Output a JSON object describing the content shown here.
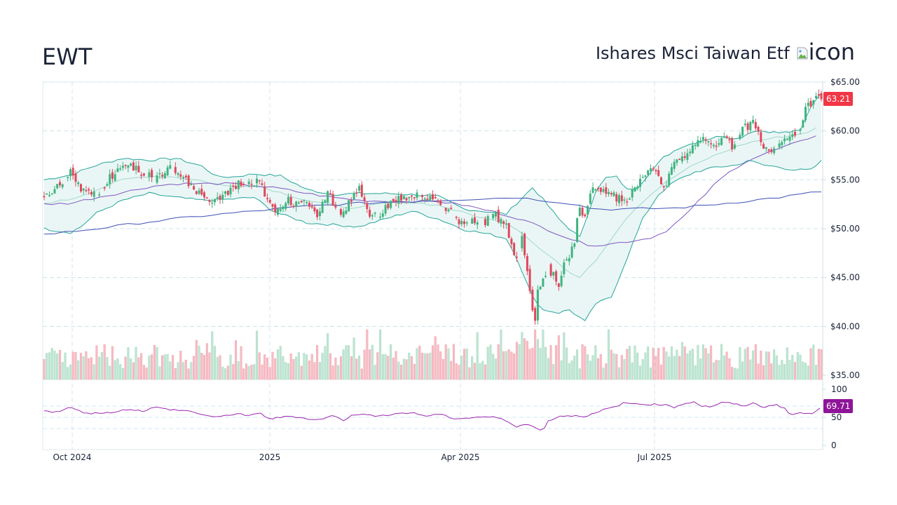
{
  "header": {
    "ticker": "EWT",
    "name": "Ishares Msci Taiwan Etf",
    "icon_alt": "icon"
  },
  "colors": {
    "up": "#26a69a",
    "up_candle": "#3fb37f",
    "down": "#e0475c",
    "bb_band": "#26a69a",
    "bb_fill": "#e6f4f3",
    "bb_mid": "#9fd8cb",
    "ma50": "#7e57c2",
    "ma200": "#3f51b5",
    "rsi": "#9c27b0",
    "price_badge": "#f23645",
    "rsi_badge": "#8e1599",
    "grid": "#cde3ea"
  },
  "badges": {
    "last_price": "63.21",
    "rsi_value": "69.71"
  },
  "chart_data": {
    "type": "candlestick",
    "title": "EWT",
    "subtitle": "Ishares Msci Taiwan Etf",
    "x_ticks": [
      "Oct 2024",
      "2025",
      "Apr 2025",
      "Jul 2025"
    ],
    "y_ticks": [
      "$65.00",
      "$60.00",
      "$55.00",
      "$50.00",
      "$45.00",
      "$40.00",
      "$35.00"
    ],
    "ylim": [
      35,
      65
    ],
    "rsi_ticks": [
      "100",
      "50",
      "0"
    ],
    "rsi_levels": [
      70,
      30
    ],
    "last_close": 63.21,
    "last_rsi": 69.71,
    "indicators": [
      "Bollinger Bands (20, 2)",
      "SMA 50",
      "SMA 200",
      "RSI 14",
      "Volume"
    ],
    "close_path": [
      [
        0,
        53.2
      ],
      [
        6,
        54.5
      ],
      [
        10,
        56.0
      ],
      [
        14,
        54.0
      ],
      [
        20,
        53.3
      ],
      [
        26,
        55.5
      ],
      [
        30,
        56.8
      ],
      [
        36,
        56.0
      ],
      [
        42,
        55.0
      ],
      [
        48,
        56.2
      ],
      [
        52,
        55.2
      ],
      [
        56,
        54.5
      ],
      [
        60,
        53.3
      ],
      [
        64,
        53.0
      ],
      [
        68,
        53.5
      ],
      [
        74,
        54.6
      ],
      [
        78,
        55.0
      ],
      [
        82,
        54.6
      ],
      [
        86,
        52.8
      ],
      [
        88,
        51.8
      ],
      [
        92,
        53.0
      ],
      [
        96,
        52.5
      ],
      [
        100,
        52.8
      ],
      [
        104,
        51.5
      ],
      [
        108,
        53.8
      ],
      [
        112,
        51.5
      ],
      [
        116,
        52.5
      ],
      [
        120,
        54.0
      ],
      [
        124,
        51.0
      ],
      [
        128,
        51.5
      ],
      [
        132,
        52.8
      ],
      [
        136,
        53.0
      ],
      [
        140,
        53.3
      ],
      [
        144,
        53.5
      ],
      [
        148,
        53.0
      ],
      [
        152,
        52.0
      ],
      [
        156,
        51.5
      ],
      [
        160,
        50.2
      ],
      [
        164,
        51.0
      ],
      [
        168,
        50.8
      ],
      [
        172,
        51.3
      ],
      [
        176,
        50.5
      ],
      [
        178,
        48.2
      ],
      [
        180,
        47.0
      ],
      [
        182,
        49.0
      ],
      [
        184,
        45.5
      ],
      [
        186,
        42.0
      ],
      [
        187,
        41.0
      ],
      [
        188,
        43.5
      ],
      [
        190,
        45.2
      ],
      [
        192,
        46.0
      ],
      [
        194,
        45.2
      ],
      [
        196,
        44.0
      ],
      [
        198,
        46.5
      ],
      [
        200,
        47.0
      ],
      [
        202,
        48.8
      ],
      [
        204,
        52.5
      ],
      [
        206,
        51.0
      ],
      [
        208,
        53.8
      ],
      [
        212,
        54.0
      ],
      [
        216,
        53.5
      ],
      [
        220,
        52.8
      ],
      [
        222,
        53.2
      ],
      [
        226,
        54.5
      ],
      [
        230,
        56.0
      ],
      [
        234,
        55.5
      ],
      [
        236,
        54.2
      ],
      [
        240,
        56.5
      ],
      [
        244,
        57.5
      ],
      [
        248,
        58.5
      ],
      [
        252,
        59.3
      ],
      [
        256,
        58.8
      ],
      [
        260,
        59.5
      ],
      [
        262,
        58.5
      ],
      [
        266,
        60.3
      ],
      [
        270,
        60.8
      ],
      [
        272,
        60.0
      ],
      [
        274,
        58.5
      ],
      [
        278,
        57.8
      ],
      [
        282,
        59.0
      ],
      [
        286,
        59.6
      ],
      [
        288,
        60.2
      ],
      [
        290,
        62.3
      ],
      [
        294,
        63.21
      ]
    ],
    "bb_upper": [
      [
        0,
        55.0
      ],
      [
        10,
        55.5
      ],
      [
        20,
        56.5
      ],
      [
        30,
        57.2
      ],
      [
        40,
        57.0
      ],
      [
        50,
        57.2
      ],
      [
        60,
        56.4
      ],
      [
        66,
        55.3
      ],
      [
        72,
        55.3
      ],
      [
        80,
        55.6
      ],
      [
        90,
        55.4
      ],
      [
        100,
        54.0
      ],
      [
        110,
        53.5
      ],
      [
        120,
        53.6
      ],
      [
        130,
        53.6
      ],
      [
        140,
        53.5
      ],
      [
        150,
        53.3
      ],
      [
        160,
        52.0
      ],
      [
        170,
        51.7
      ],
      [
        176,
        51.5
      ],
      [
        180,
        52.6
      ],
      [
        186,
        54.2
      ],
      [
        190,
        53.0
      ],
      [
        196,
        51.0
      ],
      [
        200,
        50.0
      ],
      [
        204,
        49.1
      ],
      [
        210,
        53.8
      ],
      [
        214,
        55.2
      ],
      [
        218,
        55.3
      ],
      [
        222,
        54.0
      ],
      [
        226,
        54.2
      ],
      [
        230,
        55.5
      ],
      [
        236,
        57.3
      ],
      [
        242,
        58.3
      ],
      [
        250,
        59.0
      ],
      [
        258,
        59.5
      ],
      [
        264,
        59.2
      ],
      [
        270,
        60.0
      ],
      [
        274,
        60.0
      ],
      [
        280,
        59.8
      ],
      [
        288,
        60.0
      ],
      [
        292,
        62.5
      ],
      [
        296,
        64.0
      ]
    ],
    "bb_middle": [
      [
        0,
        52.6
      ],
      [
        10,
        53.0
      ],
      [
        20,
        54.0
      ],
      [
        30,
        55.0
      ],
      [
        40,
        55.4
      ],
      [
        50,
        55.3
      ],
      [
        60,
        54.9
      ],
      [
        70,
        54.3
      ],
      [
        80,
        54.5
      ],
      [
        90,
        53.7
      ],
      [
        100,
        52.9
      ],
      [
        110,
        52.4
      ],
      [
        120,
        52.1
      ],
      [
        130,
        52.6
      ],
      [
        140,
        52.7
      ],
      [
        150,
        52.4
      ],
      [
        160,
        51.6
      ],
      [
        170,
        50.9
      ],
      [
        176,
        50.6
      ],
      [
        180,
        50.0
      ],
      [
        186,
        48.7
      ],
      [
        190,
        47.7
      ],
      [
        196,
        46.5
      ],
      [
        200,
        45.3
      ],
      [
        204,
        45.1
      ],
      [
        210,
        46.8
      ],
      [
        216,
        49.0
      ],
      [
        222,
        51.2
      ],
      [
        228,
        52.8
      ],
      [
        236,
        54.6
      ],
      [
        244,
        56.0
      ],
      [
        252,
        57.1
      ],
      [
        260,
        58.0
      ],
      [
        268,
        58.8
      ],
      [
        276,
        59.2
      ],
      [
        284,
        59.5
      ],
      [
        290,
        59.8
      ],
      [
        296,
        60.5
      ]
    ],
    "bb_lower": [
      [
        0,
        50.0
      ],
      [
        10,
        49.6
      ],
      [
        14,
        50.2
      ],
      [
        20,
        51.6
      ],
      [
        30,
        52.9
      ],
      [
        40,
        53.6
      ],
      [
        50,
        53.2
      ],
      [
        60,
        52.9
      ],
      [
        70,
        53.0
      ],
      [
        80,
        53.2
      ],
      [
        86,
        52.0
      ],
      [
        90,
        51.5
      ],
      [
        100,
        50.6
      ],
      [
        110,
        50.4
      ],
      [
        120,
        50.2
      ],
      [
        130,
        51.0
      ],
      [
        140,
        51.8
      ],
      [
        150,
        51.0
      ],
      [
        160,
        49.9
      ],
      [
        170,
        49.4
      ],
      [
        176,
        49.0
      ],
      [
        180,
        47.0
      ],
      [
        186,
        43.0
      ],
      [
        190,
        41.7
      ],
      [
        196,
        41.4
      ],
      [
        200,
        41.7
      ],
      [
        206,
        40.5
      ],
      [
        210,
        42.3
      ],
      [
        216,
        43.0
      ],
      [
        222,
        47.0
      ],
      [
        228,
        51.0
      ],
      [
        234,
        53.5
      ],
      [
        240,
        54.8
      ],
      [
        248,
        55.8
      ],
      [
        256,
        56.3
      ],
      [
        264,
        56.5
      ],
      [
        268,
        57.0
      ],
      [
        274,
        56.5
      ],
      [
        280,
        56.3
      ],
      [
        286,
        56.0
      ],
      [
        292,
        56.0
      ],
      [
        296,
        56.9
      ]
    ],
    "sma50": [
      [
        0,
        52.5
      ],
      [
        10,
        52.6
      ],
      [
        20,
        53.2
      ],
      [
        30,
        53.7
      ],
      [
        40,
        54.3
      ],
      [
        50,
        54.6
      ],
      [
        60,
        54.6
      ],
      [
        70,
        54.6
      ],
      [
        80,
        54.4
      ],
      [
        90,
        54.1
      ],
      [
        100,
        53.6
      ],
      [
        110,
        53.2
      ],
      [
        120,
        52.9
      ],
      [
        130,
        52.8
      ],
      [
        140,
        52.8
      ],
      [
        150,
        52.8
      ],
      [
        160,
        52.4
      ],
      [
        170,
        51.8
      ],
      [
        180,
        51.1
      ],
      [
        190,
        50.1
      ],
      [
        200,
        49.0
      ],
      [
        206,
        48.4
      ],
      [
        212,
        48.3
      ],
      [
        220,
        48.6
      ],
      [
        230,
        49.0
      ],
      [
        236,
        49.6
      ],
      [
        244,
        51.3
      ],
      [
        250,
        53.0
      ],
      [
        256,
        54.7
      ],
      [
        262,
        56.0
      ],
      [
        268,
        57.0
      ],
      [
        274,
        57.6
      ],
      [
        280,
        58.2
      ],
      [
        288,
        58.9
      ],
      [
        296,
        59.8
      ]
    ],
    "sma200": [
      [
        0,
        49.4
      ],
      [
        20,
        50.0
      ],
      [
        40,
        50.7
      ],
      [
        60,
        51.3
      ],
      [
        80,
        51.8
      ],
      [
        100,
        52.3
      ],
      [
        120,
        52.6
      ],
      [
        140,
        52.8
      ],
      [
        160,
        53.0
      ],
      [
        180,
        53.2
      ],
      [
        200,
        52.6
      ],
      [
        210,
        52.0
      ],
      [
        220,
        52.0
      ],
      [
        240,
        52.1
      ],
      [
        260,
        52.6
      ],
      [
        280,
        53.2
      ],
      [
        296,
        53.8
      ]
    ],
    "rsi_path": [
      [
        0,
        63
      ],
      [
        4,
        59
      ],
      [
        8,
        64
      ],
      [
        10,
        68
      ],
      [
        14,
        60
      ],
      [
        18,
        57
      ],
      [
        22,
        58
      ],
      [
        28,
        60
      ],
      [
        32,
        65
      ],
      [
        38,
        61
      ],
      [
        42,
        68
      ],
      [
        46,
        65
      ],
      [
        50,
        63
      ],
      [
        54,
        62
      ],
      [
        58,
        58
      ],
      [
        62,
        53
      ],
      [
        66,
        50
      ],
      [
        70,
        54
      ],
      [
        74,
        57
      ],
      [
        78,
        52
      ],
      [
        82,
        58
      ],
      [
        86,
        47
      ],
      [
        90,
        50
      ],
      [
        94,
        52
      ],
      [
        100,
        48
      ],
      [
        104,
        45
      ],
      [
        110,
        53
      ],
      [
        114,
        45
      ],
      [
        118,
        55
      ],
      [
        122,
        57
      ],
      [
        126,
        51
      ],
      [
        130,
        54
      ],
      [
        134,
        57
      ],
      [
        140,
        58
      ],
      [
        146,
        52
      ],
      [
        150,
        56
      ],
      [
        156,
        48
      ],
      [
        160,
        48
      ],
      [
        166,
        51
      ],
      [
        172,
        50
      ],
      [
        176,
        44
      ],
      [
        180,
        34
      ],
      [
        184,
        38
      ],
      [
        188,
        29
      ],
      [
        190,
        28
      ],
      [
        192,
        43
      ],
      [
        196,
        52
      ],
      [
        200,
        53
      ],
      [
        206,
        52
      ],
      [
        210,
        57
      ],
      [
        214,
        65
      ],
      [
        218,
        69
      ],
      [
        220,
        75
      ],
      [
        226,
        74
      ],
      [
        230,
        73
      ],
      [
        236,
        73
      ],
      [
        240,
        68
      ],
      [
        244,
        75
      ],
      [
        248,
        78
      ],
      [
        250,
        70
      ],
      [
        254,
        69
      ],
      [
        258,
        76
      ],
      [
        262,
        75
      ],
      [
        266,
        70
      ],
      [
        270,
        75
      ],
      [
        274,
        68
      ],
      [
        278,
        73
      ],
      [
        282,
        67
      ],
      [
        284,
        54
      ],
      [
        288,
        58
      ],
      [
        292,
        55
      ],
      [
        296,
        69.71
      ]
    ],
    "volume_seed": 7
  }
}
